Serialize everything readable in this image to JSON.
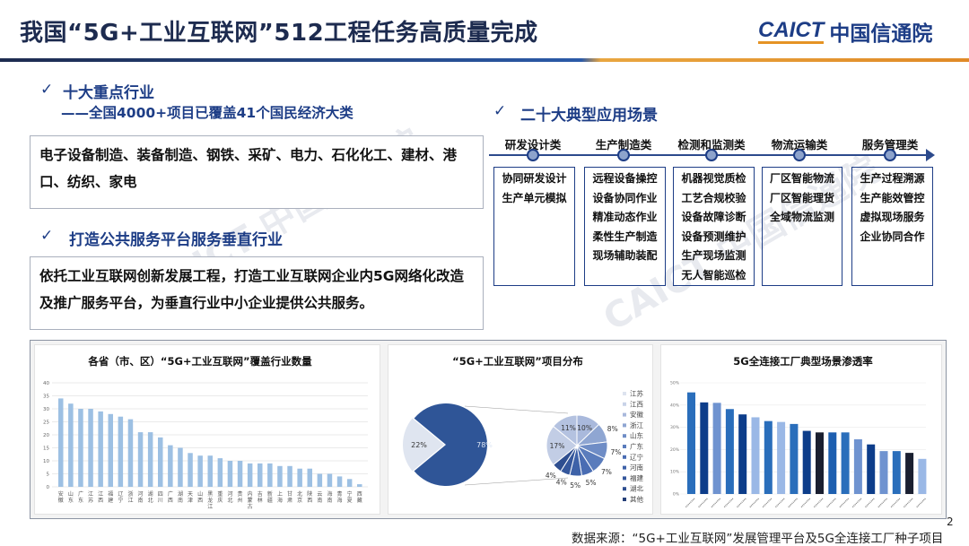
{
  "header": {
    "title": "我国“5G+工业互联网”512工程任务高质量完成",
    "logo_en": "CAICT",
    "logo_cn": "中国信通院"
  },
  "watermark": "CAICT 中国信通院",
  "left": {
    "section1": {
      "check": "✓",
      "heading": "十大重点行业",
      "subheading": "——全国4000+项目已覆盖41个国民经济大类",
      "body": "电子设备制造、装备制造、钢铁、采矿、电力、石化化工、建材、港口、纺织、家电"
    },
    "section2": {
      "check": "✓",
      "heading": "打造公共服务平台服务垂直行业",
      "body": "依托工业互联网创新发展工程，打造工业互联网企业内5G网络化改造及推广服务平台，为垂直行业中小企业提供公共服务。"
    }
  },
  "right": {
    "check": "✓",
    "heading": "二十大典型应用场景",
    "categories": [
      {
        "label": "研发设计类",
        "items": [
          "协同研发设计",
          "生产单元模拟"
        ]
      },
      {
        "label": "生产制造类",
        "items": [
          "远程设备操控",
          "设备协同作业",
          "精准动态作业",
          "柔性生产制造",
          "现场辅助装配"
        ]
      },
      {
        "label": "检测和监测类",
        "items": [
          "机器视觉质检",
          "工艺合规校验",
          "设备故障诊断",
          "设备预测维护",
          "生产现场监测",
          "无人智能巡检"
        ]
      },
      {
        "label": "物流运输类",
        "items": [
          "厂区智能物流",
          "厂区智能理货",
          "全域物流监测"
        ]
      },
      {
        "label": "服务管理类",
        "items": [
          "生产过程溯源",
          "生产能效管控",
          "虚拟现场服务",
          "企业协同合作"
        ]
      }
    ]
  },
  "chart_data": [
    {
      "type": "bar",
      "title": "各省（市、区）“5G+工业互联网”覆盖行业数量",
      "ylim": [
        0,
        40
      ],
      "yticks": [
        0,
        5,
        10,
        15,
        20,
        25,
        30,
        35,
        40
      ],
      "grid": true,
      "color": "#9dc0e3",
      "categories": [
        "安徽",
        "山东",
        "广东",
        "江苏",
        "江西",
        "福建",
        "辽宁",
        "浙江",
        "河南",
        "湖北",
        "四川",
        "广西",
        "湖南",
        "天津",
        "山西",
        "黑龙江",
        "重庆",
        "河北",
        "贵州",
        "内蒙古",
        "吉林",
        "新疆",
        "上海",
        "甘肃",
        "北京",
        "陕西",
        "云南",
        "海南",
        "青海",
        "宁夏",
        "西藏"
      ],
      "values": [
        34,
        32,
        30,
        30,
        29,
        28,
        27,
        26,
        21,
        21,
        19,
        16,
        15,
        13,
        12,
        12,
        11,
        10,
        10,
        9,
        9,
        9,
        8,
        8,
        7,
        7,
        5,
        5,
        4,
        3,
        1
      ]
    },
    {
      "type": "pie",
      "title": "“5G+工业互联网”项目分布",
      "main_pie": [
        {
          "value": 78,
          "label": "78%",
          "color": "#2f5597"
        },
        {
          "value": 22,
          "label": "22%",
          "color": "#dfe5f0"
        }
      ],
      "sub_pie": {
        "values": [
          10,
          8,
          7,
          7,
          5,
          5,
          4,
          4,
          17,
          11
        ],
        "labels": [
          "10%",
          "8%",
          "7%",
          "7%",
          "5%",
          "5%",
          "4%",
          "4%",
          "17%",
          "11%"
        ],
        "colors": [
          "#a9b9dc",
          "#8fa6d2",
          "#6f8dc6",
          "#5a7cbc",
          "#4a6db3",
          "#3e62a8",
          "#35579c",
          "#2e4e90",
          "#c2cde5",
          "#b4c2e0"
        ]
      },
      "legend": [
        "江苏",
        "江西",
        "安徽",
        "浙江",
        "山东",
        "广东",
        "辽宁",
        "河南",
        "福建",
        "湖北",
        "其他"
      ],
      "legend_position": "right"
    },
    {
      "type": "bar",
      "title": "5G全连接工厂典型场景渗透率",
      "ylim": [
        0,
        50
      ],
      "yticks": [
        "0%",
        "10%",
        "20%",
        "30%",
        "40%",
        "50%"
      ],
      "grid": true,
      "values": [
        45.7,
        41.2,
        41,
        38.2,
        35.8,
        34.5,
        32.8,
        32.4,
        31.5,
        28.4,
        27.7,
        27.7,
        27.7,
        24.6,
        22.3,
        19.3,
        19.3,
        18.5,
        15.8
      ],
      "colors": [
        "#2a6ebb",
        "#0d3d8a",
        "#6f93d0",
        "#2a6ebb",
        "#0d3d8a",
        "#9ab8e6",
        "#2a6ebb",
        "#9ab8e6",
        "#2a6ebb",
        "#0d3d8a",
        "#1a1f30",
        "#1d5fb0",
        "#2a6ebb",
        "#6f93d0",
        "#0d3d8a",
        "#6f93d0",
        "#2a6ebb",
        "#1a1f30",
        "#9ab8e6"
      ]
    }
  ],
  "footer": {
    "source": "数据来源：“5G+工业互联网”发展管理平台及5G全连接工厂种子项目",
    "page": "2"
  }
}
